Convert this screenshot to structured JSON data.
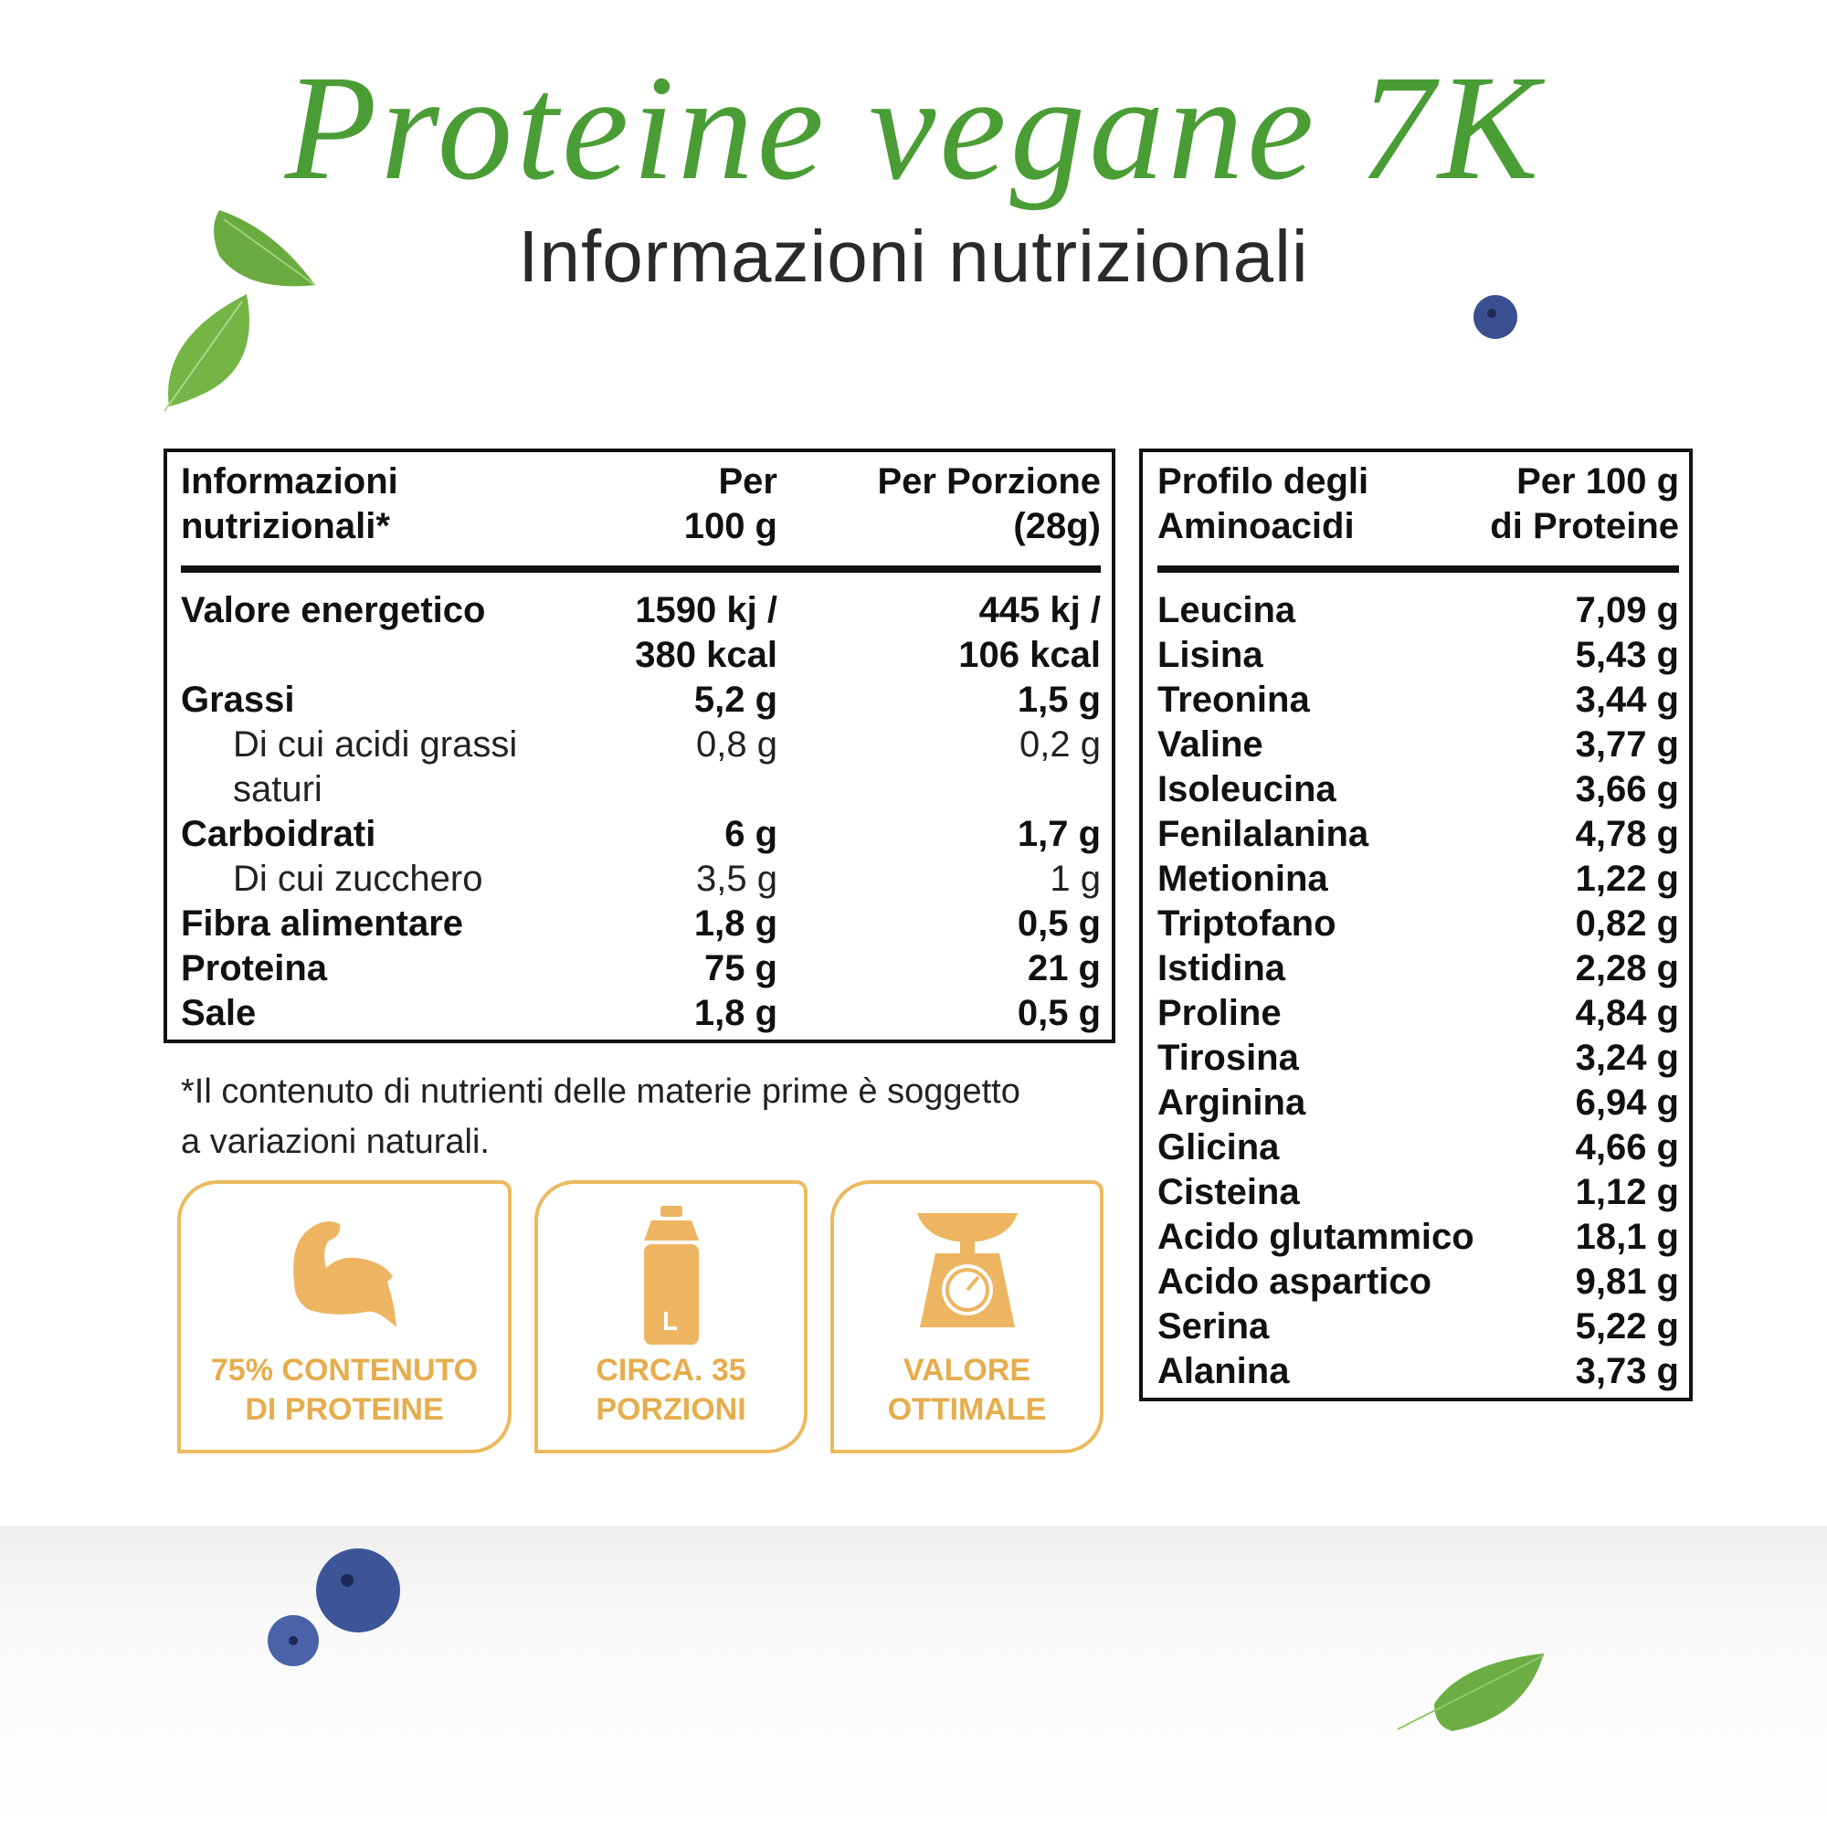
{
  "header": {
    "title": "Proteine vegane 7K",
    "subtitle": "Informazioni nutrizionali"
  },
  "nutrition_table": {
    "headers": [
      "Informazioni\nnutrizionali*",
      "Per\n100 g",
      "Per Porzione\n(28g)"
    ],
    "rows": [
      {
        "label": "Valore energetico",
        "per_100g": "1590 kj /\n380 kcal",
        "per_portion": "445 kj /\n106 kcal",
        "sub": false
      },
      {
        "label": "Grassi",
        "per_100g": "5,2 g",
        "per_portion": "1,5 g",
        "sub": false
      },
      {
        "label": "Di cui acidi grassi\nsaturi",
        "per_100g": "0,8 g",
        "per_portion": "0,2 g",
        "sub": true
      },
      {
        "label": "Carboidrati",
        "per_100g": "6 g",
        "per_portion": "1,7 g",
        "sub": false
      },
      {
        "label": "Di cui zucchero",
        "per_100g": "3,5 g",
        "per_portion": "1 g",
        "sub": true
      },
      {
        "label": "Fibra alimentare",
        "per_100g": "1,8 g",
        "per_portion": "0,5 g",
        "sub": false
      },
      {
        "label": "Proteina",
        "per_100g": "75 g",
        "per_portion": "21 g",
        "sub": false
      },
      {
        "label": "Sale",
        "per_100g": "1,8 g",
        "per_portion": "0,5 g",
        "sub": false
      }
    ]
  },
  "footnote": "*Il contenuto di nutrienti delle materie prime è soggetto\na variazioni naturali.",
  "badges": [
    "75% CONTENUTO\nDI PROTEINE",
    "CIRCA. 35\nPORZIONI",
    "VALORE\nOTTIMALE"
  ],
  "amino_table": {
    "headers": [
      "Profilo degli\nAminoacidi",
      "Per 100 g\ndi Proteine"
    ],
    "rows": [
      [
        "Leucina",
        "7,09 g"
      ],
      [
        "Lisina",
        "5,43 g"
      ],
      [
        "Treonina",
        "3,44 g"
      ],
      [
        "Valine",
        "3,77 g"
      ],
      [
        "Isoleucina",
        "3,66 g"
      ],
      [
        "Fenilalanina",
        "4,78 g"
      ],
      [
        "Metionina",
        "1,22 g"
      ],
      [
        "Triptofano",
        "0,82 g"
      ],
      [
        "Istidina",
        "2,28 g"
      ],
      [
        "Proline",
        "4,84 g"
      ],
      [
        "Tirosina",
        "3,24 g"
      ],
      [
        "Arginina",
        "6,94 g"
      ],
      [
        "Glicina",
        "4,66 g"
      ],
      [
        "Cisteina",
        "1,12 g"
      ],
      [
        "Acido glutammico",
        "18,1 g"
      ],
      [
        "Acido aspartico",
        "9,81 g"
      ],
      [
        "Serina",
        "5,22 g"
      ],
      [
        "Alanina",
        "3,73 g"
      ]
    ]
  }
}
